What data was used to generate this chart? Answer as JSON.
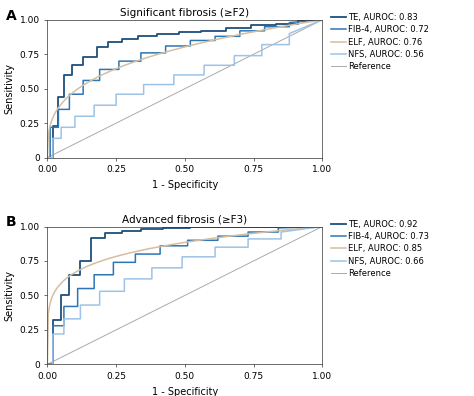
{
  "panel_A": {
    "title": "Significant fibrosis (≥F2)",
    "curves": [
      {
        "label": "TE, AUROC: 0.83",
        "color": "#1f4e79",
        "linewidth": 1.3,
        "smooth": false
      },
      {
        "label": "FIB-4, AUROC: 0.72",
        "color": "#2e75b6",
        "linewidth": 1.1,
        "smooth": false
      },
      {
        "label": "ELF, AUROC: 0.76",
        "color": "#d4bfa0",
        "linewidth": 1.1,
        "smooth": true
      },
      {
        "label": "NFS, AUROC: 0.56",
        "color": "#9dc3e6",
        "linewidth": 1.1,
        "smooth": false
      }
    ]
  },
  "panel_B": {
    "title": "Advanced fibrosis (≥F3)",
    "curves": [
      {
        "label": "TE, AUROC: 0.92",
        "color": "#1f4e79",
        "linewidth": 1.3,
        "smooth": false
      },
      {
        "label": "FIB-4, AUROC: 0.73",
        "color": "#2e75b6",
        "linewidth": 1.1,
        "smooth": false
      },
      {
        "label": "ELF, AUROC: 0.85",
        "color": "#d4bfa0",
        "linewidth": 1.1,
        "smooth": true
      },
      {
        "label": "NFS, AUROC: 0.66",
        "color": "#9dc3e6",
        "linewidth": 1.1,
        "smooth": false
      }
    ]
  },
  "reference_color": "#aaaaaa",
  "xlabel": "1 - Specificity",
  "ylabel": "Sensitivity",
  "xlim": [
    0.0,
    1.0
  ],
  "ylim": [
    0.0,
    1.0
  ],
  "xticks": [
    0.0,
    0.25,
    0.5,
    0.75,
    1.0
  ],
  "yticks": [
    0,
    0.25,
    0.5,
    0.75,
    1.0
  ],
  "ytick_labels": [
    "0",
    "0.25",
    "0.50",
    "0.75",
    "1.00"
  ],
  "xtick_labels": [
    "0.00",
    "0.25",
    "0.50",
    "0.75",
    "1.00"
  ],
  "tick_fontsize": 6.5,
  "label_fontsize": 7,
  "title_fontsize": 7.5,
  "legend_fontsize": 6,
  "roc_A": {
    "TE": {
      "fpr": [
        0,
        0.02,
        0.02,
        0.04,
        0.04,
        0.06,
        0.06,
        0.09,
        0.09,
        0.13,
        0.13,
        0.18,
        0.18,
        0.22,
        0.22,
        0.27,
        0.27,
        0.33,
        0.33,
        0.4,
        0.4,
        0.48,
        0.48,
        0.56,
        0.56,
        0.65,
        0.65,
        0.74,
        0.74,
        0.83,
        0.83,
        0.91,
        0.91,
        1.0
      ],
      "tpr": [
        0,
        0,
        0.23,
        0.23,
        0.44,
        0.44,
        0.6,
        0.6,
        0.67,
        0.67,
        0.73,
        0.73,
        0.8,
        0.8,
        0.84,
        0.84,
        0.86,
        0.86,
        0.88,
        0.88,
        0.9,
        0.9,
        0.91,
        0.91,
        0.92,
        0.92,
        0.94,
        0.94,
        0.96,
        0.96,
        0.97,
        0.97,
        1.0,
        1.0
      ]
    },
    "FIB4": {
      "fpr": [
        0,
        0.01,
        0.01,
        0.04,
        0.04,
        0.08,
        0.08,
        0.13,
        0.13,
        0.19,
        0.19,
        0.26,
        0.26,
        0.34,
        0.34,
        0.43,
        0.43,
        0.52,
        0.52,
        0.61,
        0.61,
        0.7,
        0.7,
        0.79,
        0.79,
        0.88,
        0.88,
        1.0
      ],
      "tpr": [
        0,
        0,
        0.22,
        0.22,
        0.35,
        0.35,
        0.46,
        0.46,
        0.56,
        0.56,
        0.64,
        0.64,
        0.7,
        0.7,
        0.76,
        0.76,
        0.81,
        0.81,
        0.85,
        0.85,
        0.88,
        0.88,
        0.92,
        0.92,
        0.95,
        0.95,
        0.98,
        1.0
      ]
    },
    "NFS": {
      "fpr": [
        0,
        0.02,
        0.02,
        0.05,
        0.05,
        0.1,
        0.1,
        0.17,
        0.17,
        0.25,
        0.25,
        0.35,
        0.35,
        0.46,
        0.46,
        0.57,
        0.57,
        0.68,
        0.68,
        0.78,
        0.78,
        0.88,
        0.88,
        1.0
      ],
      "tpr": [
        0,
        0,
        0.14,
        0.14,
        0.22,
        0.22,
        0.3,
        0.3,
        0.38,
        0.38,
        0.46,
        0.46,
        0.53,
        0.53,
        0.6,
        0.6,
        0.67,
        0.67,
        0.74,
        0.74,
        0.82,
        0.82,
        0.9,
        1.0
      ]
    }
  },
  "roc_B": {
    "TE": {
      "fpr": [
        0,
        0.02,
        0.02,
        0.05,
        0.05,
        0.08,
        0.08,
        0.12,
        0.12,
        0.16,
        0.16,
        0.21,
        0.21,
        0.27,
        0.27,
        0.34,
        0.34,
        0.42,
        0.42,
        0.52,
        0.52,
        0.63,
        0.63,
        0.75,
        0.75,
        0.87,
        0.87,
        1.0
      ],
      "tpr": [
        0,
        0,
        0.32,
        0.32,
        0.5,
        0.5,
        0.65,
        0.65,
        0.75,
        0.75,
        0.92,
        0.92,
        0.95,
        0.95,
        0.97,
        0.97,
        0.98,
        0.98,
        0.99,
        0.99,
        1.0,
        1.0,
        1.0,
        1.0,
        1.0,
        1.0,
        1.0,
        1.0
      ]
    },
    "FIB4": {
      "fpr": [
        0,
        0.02,
        0.02,
        0.06,
        0.06,
        0.11,
        0.11,
        0.17,
        0.17,
        0.24,
        0.24,
        0.32,
        0.32,
        0.41,
        0.41,
        0.51,
        0.51,
        0.62,
        0.62,
        0.73,
        0.73,
        0.84,
        0.84,
        1.0
      ],
      "tpr": [
        0,
        0,
        0.28,
        0.28,
        0.42,
        0.42,
        0.55,
        0.55,
        0.65,
        0.65,
        0.74,
        0.74,
        0.8,
        0.8,
        0.86,
        0.86,
        0.9,
        0.9,
        0.93,
        0.93,
        0.96,
        0.96,
        0.99,
        1.0
      ]
    },
    "NFS": {
      "fpr": [
        0,
        0.02,
        0.02,
        0.06,
        0.06,
        0.12,
        0.12,
        0.19,
        0.19,
        0.28,
        0.28,
        0.38,
        0.38,
        0.49,
        0.49,
        0.61,
        0.61,
        0.73,
        0.73,
        0.85,
        0.85,
        1.0
      ],
      "tpr": [
        0,
        0,
        0.22,
        0.22,
        0.33,
        0.33,
        0.43,
        0.43,
        0.53,
        0.53,
        0.62,
        0.62,
        0.7,
        0.7,
        0.78,
        0.78,
        0.85,
        0.85,
        0.91,
        0.91,
        0.96,
        1.0
      ]
    }
  }
}
